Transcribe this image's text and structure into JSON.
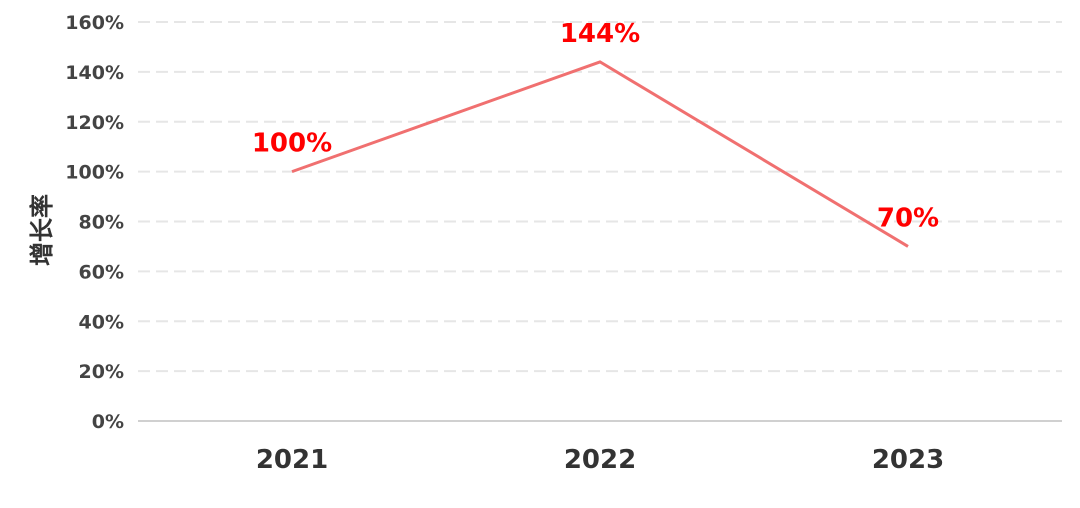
{
  "chart_data": {
    "type": "line",
    "categories": [
      "2021",
      "2022",
      "2023"
    ],
    "series": [
      {
        "values": [
          100,
          144,
          70
        ]
      }
    ],
    "data_labels": [
      "100%",
      "144%",
      "70%"
    ],
    "ylabel": "增长率",
    "xlabel": "",
    "ylim": [
      0,
      160
    ],
    "yticks": [
      "0%",
      "20%",
      "40%",
      "60%",
      "80%",
      "100%",
      "120%",
      "140%",
      "160%"
    ],
    "grid": true,
    "line_color": "#f07070",
    "label_color": "#ff0000"
  }
}
